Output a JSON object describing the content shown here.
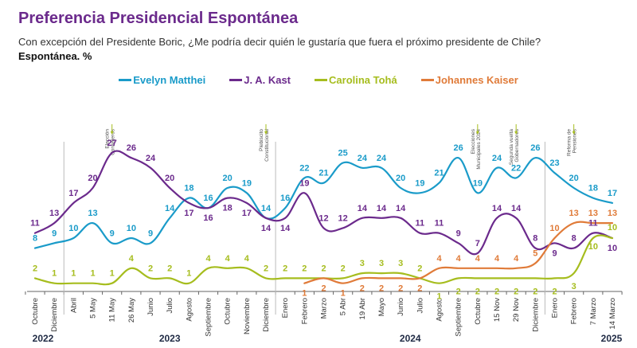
{
  "header": {
    "title": "Preferencia Presidencial Espontánea",
    "subtitle": "Con excepción del Presidente Boric, ¿Me podría decir quién le gustaría que fuera el próximo presidente de Chile?",
    "subtitle2": "Espontánea. %"
  },
  "chart_data": {
    "type": "line",
    "title": "Preferencia Presidencial Espontánea",
    "xlabel": "",
    "ylabel": "%",
    "ylim": [
      0,
      30
    ],
    "grid": false,
    "legend": "top-center",
    "categories": [
      "Octubre",
      "Diciembre",
      "Abril",
      "5 May",
      "11 May",
      "26 May",
      "Junio",
      "Julio",
      "Agosto",
      "Septiembre",
      "Octubre",
      "Noviembre",
      "Diciembre",
      "Enero",
      "Febrero",
      "Marzo",
      "5 Abr",
      "19 Abr",
      "Mayo",
      "Junio",
      "Julio",
      "Agosto",
      "Septiembre",
      "Octubre",
      "15 Nov",
      "29 Nov",
      "Diciembre",
      "Enero",
      "Febrero",
      "7 Marzo",
      "14 Marzo"
    ],
    "years": [
      {
        "label": "2022",
        "start": 0,
        "end": 1
      },
      {
        "label": "2023",
        "start": 2,
        "end": 12
      },
      {
        "label": "2024",
        "start": 13,
        "end": 26
      },
      {
        "label": "2025",
        "start": 27,
        "end": 30
      }
    ],
    "series": [
      {
        "name": "Evelyn Matthei",
        "color": "#1a9bc9",
        "values": [
          8,
          9,
          10,
          13,
          9,
          10,
          9,
          14,
          18,
          16,
          20,
          19,
          14,
          16,
          22,
          21,
          25,
          24,
          24,
          20,
          19,
          21,
          26,
          19,
          24,
          22,
          26,
          23,
          20,
          18,
          17
        ]
      },
      {
        "name": "J. A. Kast",
        "color": "#6b2a8c",
        "values": [
          11,
          13,
          17,
          20,
          27,
          26,
          24,
          20,
          17,
          16,
          18,
          17,
          14,
          14,
          19,
          12,
          12,
          14,
          14,
          14,
          11,
          11,
          9,
          7,
          14,
          14,
          8,
          9,
          8,
          11,
          10
        ]
      },
      {
        "name": "Carolina Tohá",
        "color": "#a6bd1e",
        "values": [
          2,
          1,
          1,
          1,
          1,
          4,
          2,
          2,
          1,
          4,
          4,
          4,
          2,
          2,
          2,
          2,
          2,
          3,
          3,
          3,
          2,
          1,
          2,
          2,
          2,
          2,
          2,
          2,
          3,
          10,
          10
        ]
      },
      {
        "name": "Johannes Kaiser",
        "color": "#e07b39",
        "values": [
          null,
          null,
          null,
          null,
          null,
          null,
          null,
          null,
          null,
          null,
          null,
          null,
          null,
          null,
          1,
          2,
          1,
          2,
          2,
          2,
          2,
          4,
          4,
          4,
          4,
          4,
          5,
          10,
          13,
          13,
          13
        ]
      }
    ],
    "annotations": [
      {
        "text": [
          "Elección",
          "Consejeros"
        ],
        "at": 4
      },
      {
        "text": [
          "Plebiscito",
          "Constitucional"
        ],
        "at": 12
      },
      {
        "text": [
          "Elecciones",
          "Municipales 2024"
        ],
        "at": 23
      },
      {
        "text": [
          "Segunda vuelta",
          "Gobernadores"
        ],
        "at": 25
      },
      {
        "text": [
          "Reforma de",
          "Pensiones"
        ],
        "at": 28
      }
    ]
  }
}
